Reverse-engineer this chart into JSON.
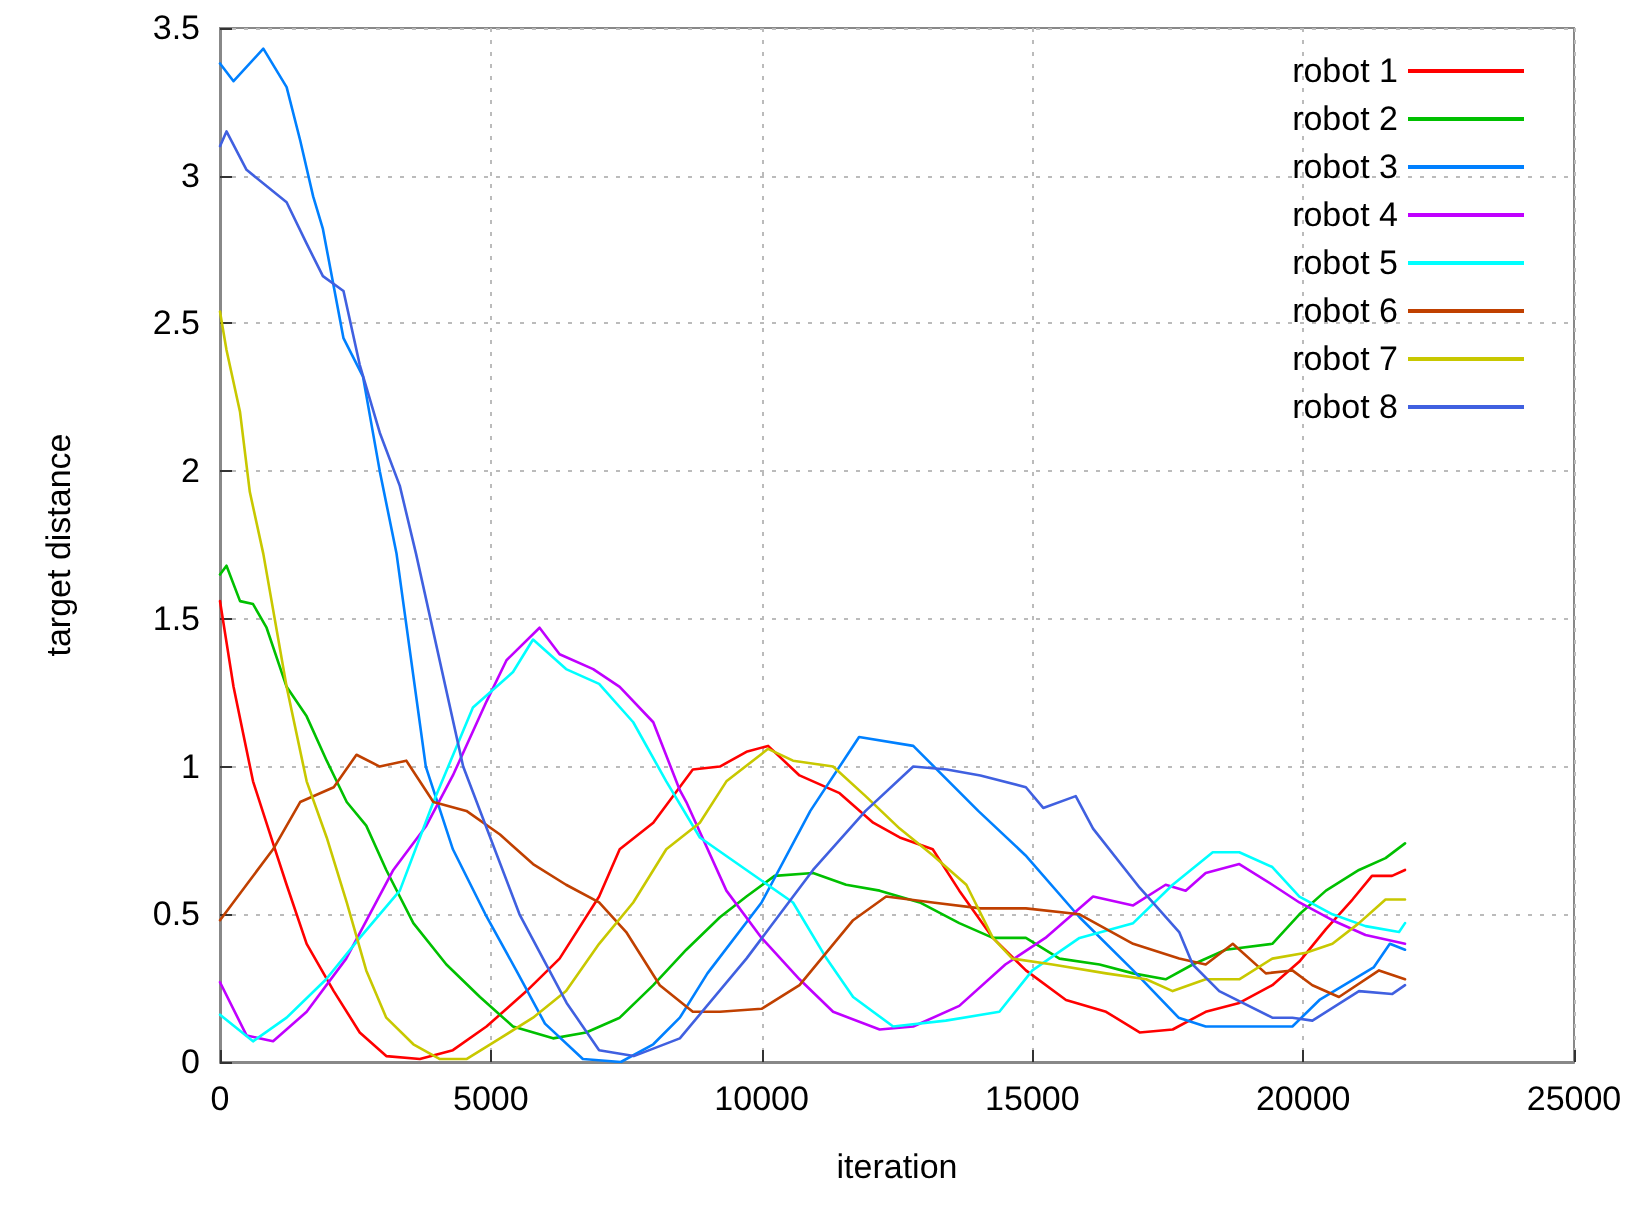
{
  "chart_data": {
    "type": "line",
    "xlabel": "iteration",
    "ylabel": "target distance",
    "xlim": [
      0,
      25000
    ],
    "xticks": [
      0,
      5000,
      10000,
      15000,
      20000,
      25000
    ],
    "ylim": [
      0,
      3.5
    ],
    "yticks": [
      0,
      0.5,
      1,
      1.5,
      2,
      2.5,
      3,
      3.5
    ],
    "grid": true,
    "legend": "top right",
    "marker": "none",
    "line_style": "solid",
    "series": [
      {
        "name": "robot 1",
        "color": "#ff0000",
        "x": [
          0,
          250,
          610,
          980,
          1230,
          1600,
          2100,
          2580,
          3070,
          3690,
          4300,
          4920,
          5660,
          6270,
          7000,
          7380,
          8000,
          8730,
          9230,
          9720,
          10120,
          10700,
          11440,
          12060,
          12550,
          13160,
          13650,
          14270,
          14880,
          15620,
          16360,
          16980,
          17590,
          18200,
          18820,
          19430,
          19930,
          20420,
          20910,
          21270,
          21640,
          21880
        ],
        "values": [
          1.56,
          1.27,
          0.95,
          0.74,
          0.6,
          0.4,
          0.24,
          0.1,
          0.02,
          0.01,
          0.04,
          0.12,
          0.24,
          0.35,
          0.56,
          0.72,
          0.81,
          0.99,
          1.0,
          1.05,
          1.07,
          0.97,
          0.91,
          0.81,
          0.76,
          0.72,
          0.58,
          0.42,
          0.31,
          0.21,
          0.17,
          0.1,
          0.11,
          0.17,
          0.2,
          0.26,
          0.34,
          0.45,
          0.55,
          0.63,
          0.63,
          0.65
        ]
      },
      {
        "name": "robot 2",
        "color": "#00c000",
        "x": [
          0,
          120,
          370,
          610,
          860,
          1230,
          1600,
          1970,
          2340,
          2700,
          3070,
          3570,
          4180,
          4800,
          5410,
          6150,
          6760,
          7380,
          8000,
          8610,
          9230,
          9720,
          10240,
          10950,
          11560,
          12180,
          12920,
          13650,
          14270,
          14880,
          15500,
          16240,
          16860,
          17460,
          17960,
          18570,
          19430,
          19930,
          20420,
          21030,
          21520,
          21880
        ],
        "values": [
          1.65,
          1.68,
          1.56,
          1.55,
          1.47,
          1.27,
          1.17,
          1.02,
          0.88,
          0.8,
          0.65,
          0.47,
          0.33,
          0.22,
          0.12,
          0.08,
          0.1,
          0.15,
          0.26,
          0.38,
          0.49,
          0.56,
          0.63,
          0.64,
          0.6,
          0.58,
          0.54,
          0.47,
          0.42,
          0.42,
          0.35,
          0.33,
          0.3,
          0.28,
          0.33,
          0.38,
          0.4,
          0.5,
          0.58,
          0.65,
          0.69,
          0.74
        ]
      },
      {
        "name": "robot 3",
        "color": "#0080ff",
        "x": [
          0,
          250,
          800,
          1230,
          1480,
          1720,
          1900,
          2280,
          2640,
          2950,
          3260,
          3800,
          4300,
          4900,
          5500,
          6000,
          6700,
          7400,
          8000,
          8490,
          9000,
          10000,
          10900,
          11800,
          12800,
          14000,
          14870,
          15870,
          16860,
          17700,
          18200,
          19000,
          19800,
          20300,
          21300,
          21600,
          21880
        ],
        "values": [
          3.38,
          3.32,
          3.43,
          3.3,
          3.12,
          2.93,
          2.82,
          2.45,
          2.32,
          2.0,
          1.72,
          1.0,
          0.72,
          0.5,
          0.3,
          0.13,
          0.01,
          0.0,
          0.06,
          0.15,
          0.3,
          0.54,
          0.85,
          1.1,
          1.07,
          0.85,
          0.7,
          0.49,
          0.31,
          0.15,
          0.12,
          0.12,
          0.12,
          0.21,
          0.32,
          0.4,
          0.38
        ]
      },
      {
        "name": "robot 4",
        "color": "#c000ff",
        "x": [
          0,
          490,
          980,
          1600,
          2330,
          3200,
          3810,
          4300,
          4920,
          5290,
          5900,
          6270,
          6890,
          7380,
          8000,
          8490,
          8610,
          9350,
          10000,
          10700,
          11320,
          12180,
          12800,
          13650,
          14500,
          15240,
          16120,
          16860,
          17460,
          17830,
          18200,
          18820,
          19430,
          19930,
          20540,
          21150,
          21880
        ],
        "values": [
          0.27,
          0.09,
          0.07,
          0.17,
          0.35,
          0.65,
          0.8,
          0.97,
          1.22,
          1.36,
          1.47,
          1.38,
          1.33,
          1.27,
          1.15,
          0.92,
          0.88,
          0.58,
          0.42,
          0.28,
          0.17,
          0.11,
          0.12,
          0.19,
          0.33,
          0.42,
          0.56,
          0.53,
          0.6,
          0.58,
          0.64,
          0.67,
          0.6,
          0.54,
          0.48,
          0.43,
          0.4
        ]
      },
      {
        "name": "robot 5",
        "color": "#00ffff",
        "x": [
          0,
          610,
          1230,
          1960,
          2580,
          3320,
          3940,
          4670,
          5410,
          5780,
          6390,
          7000,
          7630,
          8240,
          8860,
          9720,
          10580,
          11200,
          11690,
          12430,
          13400,
          14390,
          15000,
          15870,
          16860,
          17590,
          18330,
          18820,
          19430,
          19930,
          20540,
          21150,
          21770,
          21880
        ],
        "values": [
          0.16,
          0.07,
          0.15,
          0.28,
          0.42,
          0.58,
          0.88,
          1.2,
          1.32,
          1.43,
          1.33,
          1.28,
          1.15,
          0.95,
          0.76,
          0.65,
          0.54,
          0.35,
          0.22,
          0.12,
          0.14,
          0.17,
          0.31,
          0.42,
          0.47,
          0.6,
          0.71,
          0.71,
          0.66,
          0.56,
          0.5,
          0.46,
          0.44,
          0.47
        ]
      },
      {
        "name": "robot 6",
        "color": "#c04000",
        "x": [
          0,
          490,
          980,
          1480,
          2100,
          2520,
          2950,
          3440,
          3940,
          4550,
          5170,
          5780,
          6390,
          7000,
          7500,
          8120,
          8730,
          9230,
          10000,
          10700,
          11690,
          12300,
          13160,
          14040,
          14880,
          15870,
          16860,
          17710,
          18200,
          18700,
          19310,
          19800,
          20170,
          20660,
          21400,
          21880
        ],
        "values": [
          0.48,
          0.6,
          0.72,
          0.88,
          0.93,
          1.04,
          1.0,
          1.02,
          0.88,
          0.85,
          0.77,
          0.67,
          0.6,
          0.54,
          0.44,
          0.26,
          0.17,
          0.17,
          0.18,
          0.26,
          0.48,
          0.56,
          0.54,
          0.52,
          0.52,
          0.5,
          0.4,
          0.35,
          0.33,
          0.4,
          0.3,
          0.31,
          0.26,
          0.22,
          0.31,
          0.28
        ]
      },
      {
        "name": "robot 7",
        "color": "#c8c800",
        "x": [
          0,
          120,
          370,
          550,
          800,
          1230,
          1600,
          1970,
          2340,
          2700,
          3070,
          3570,
          4060,
          4550,
          5170,
          5780,
          6390,
          7000,
          7630,
          8240,
          8860,
          9350,
          10120,
          10580,
          11320,
          11920,
          12550,
          13160,
          13780,
          14270,
          14630,
          15370,
          16360,
          17100,
          17590,
          18200,
          18820,
          19430,
          20050,
          20540,
          21030,
          21520,
          21880
        ],
        "values": [
          2.54,
          2.41,
          2.2,
          1.93,
          1.72,
          1.27,
          0.95,
          0.76,
          0.54,
          0.31,
          0.15,
          0.06,
          0.01,
          0.01,
          0.08,
          0.15,
          0.24,
          0.4,
          0.54,
          0.72,
          0.81,
          0.95,
          1.06,
          1.02,
          1.0,
          0.9,
          0.79,
          0.7,
          0.6,
          0.42,
          0.35,
          0.33,
          0.3,
          0.28,
          0.24,
          0.28,
          0.28,
          0.35,
          0.37,
          0.4,
          0.47,
          0.55,
          0.55
        ]
      },
      {
        "name": "robot 8",
        "color": "#4060e0",
        "x": [
          0,
          120,
          490,
          1230,
          1600,
          1900,
          2280,
          2580,
          2950,
          3320,
          3620,
          4490,
          5530,
          6400,
          7000,
          7640,
          8490,
          9720,
          10950,
          11920,
          12800,
          13420,
          14040,
          14880,
          15200,
          15800,
          16120,
          16980,
          17710,
          17960,
          18450,
          19430,
          19800,
          20170,
          21030,
          21640,
          21880
        ],
        "values": [
          3.1,
          3.15,
          3.02,
          2.91,
          2.77,
          2.66,
          2.61,
          2.36,
          2.13,
          1.95,
          1.72,
          1.0,
          0.5,
          0.2,
          0.04,
          0.02,
          0.08,
          0.35,
          0.65,
          0.85,
          1.0,
          0.99,
          0.97,
          0.93,
          0.86,
          0.9,
          0.79,
          0.59,
          0.44,
          0.33,
          0.24,
          0.15,
          0.15,
          0.14,
          0.24,
          0.23,
          0.26
        ]
      }
    ]
  }
}
